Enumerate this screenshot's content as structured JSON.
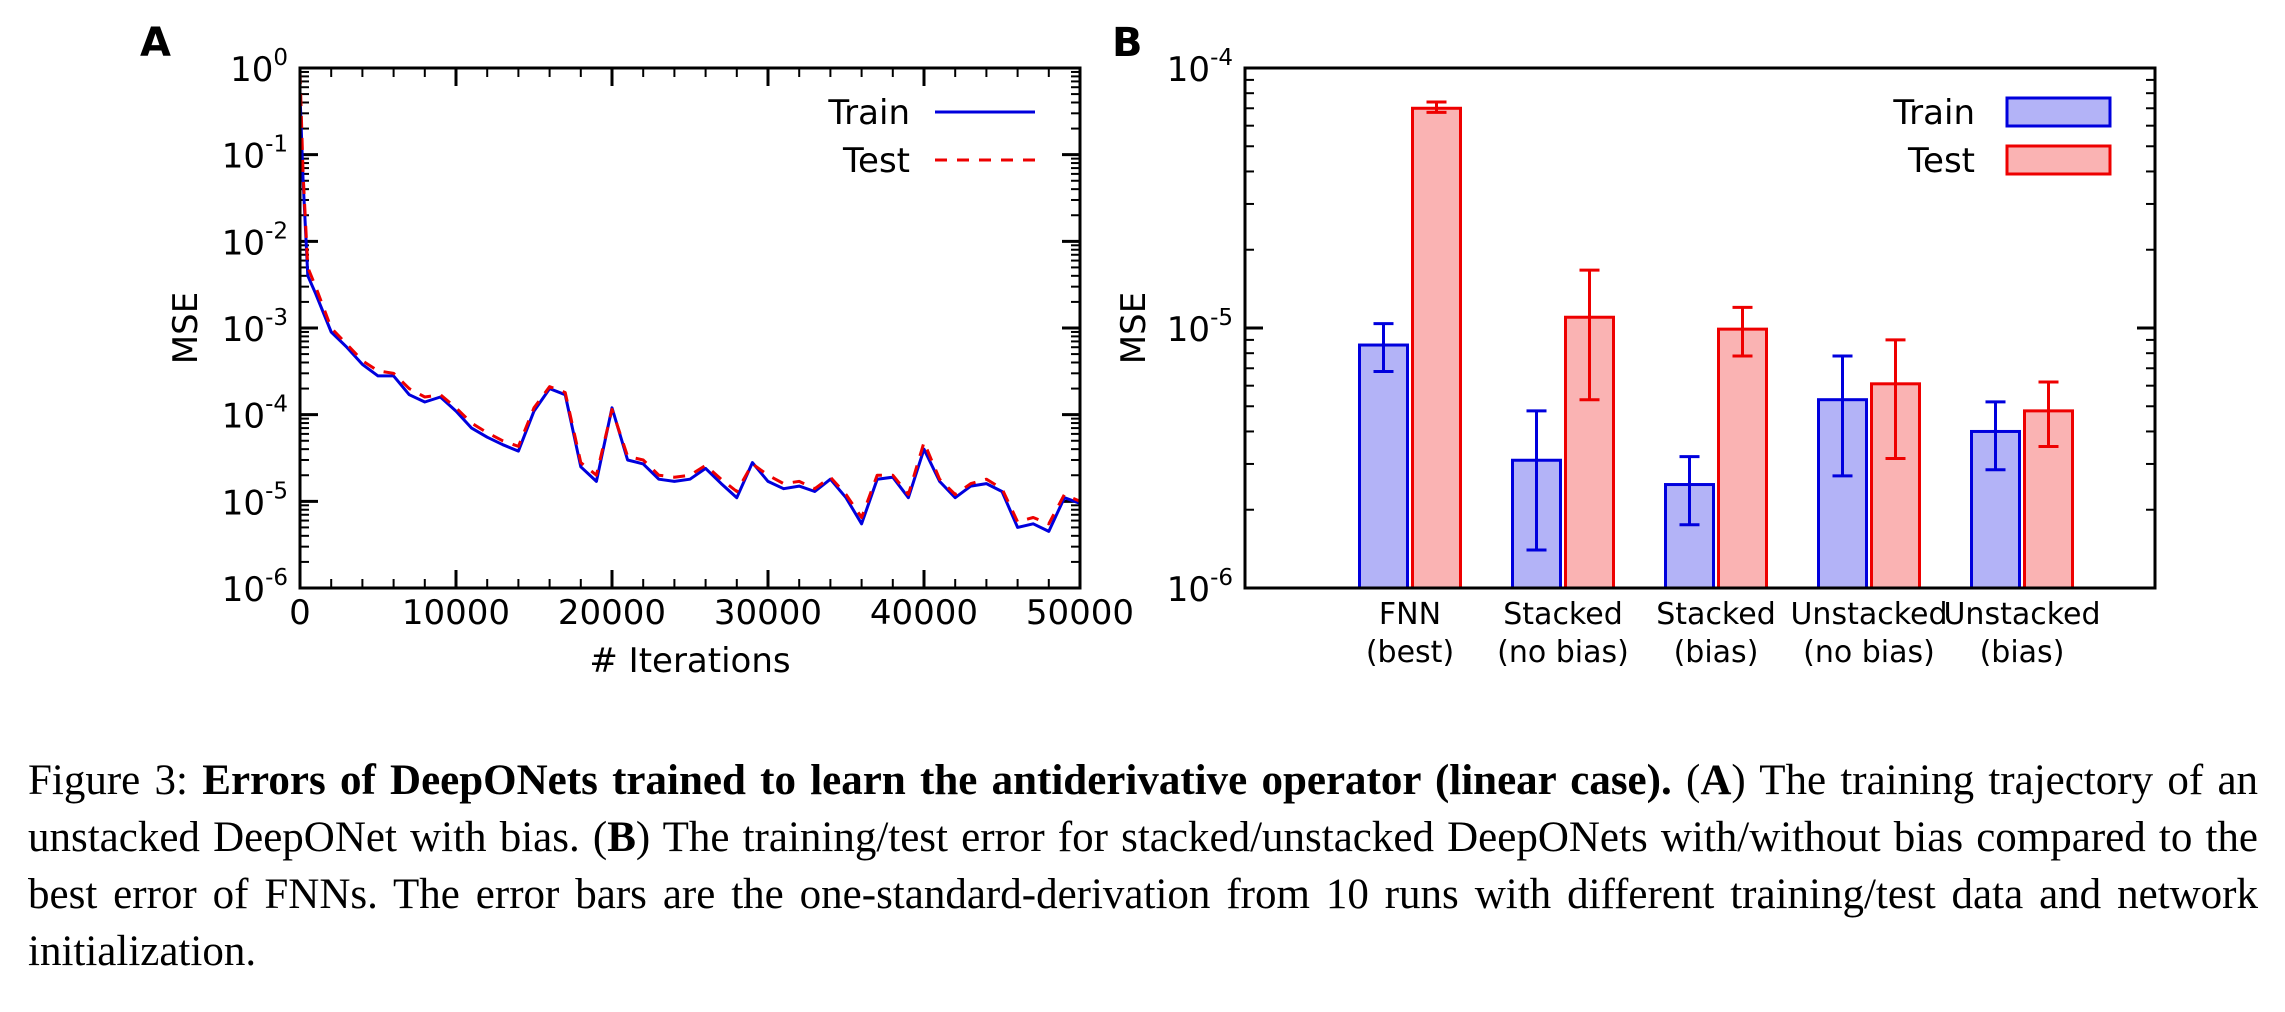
{
  "chart_data": [
    {
      "type": "line",
      "panel_label": "A",
      "xlabel": "# Iterations",
      "ylabel": "MSE",
      "yscale": "log",
      "xlim": [
        0,
        50000
      ],
      "ylim": [
        1e-06,
        1
      ],
      "x_ticks": [
        "0",
        "10000",
        "20000",
        "30000",
        "40000",
        "50000"
      ],
      "y_tick_bases": [
        "10",
        "10",
        "10",
        "10",
        "10",
        "10",
        "10"
      ],
      "y_tick_exponents": [
        "0",
        "-1",
        "-2",
        "-3",
        "-4",
        "-5",
        "-6"
      ],
      "legend": [
        "Train",
        "Test"
      ],
      "legend_position": "top-right",
      "series": [
        {
          "name": "Train",
          "color": "#0000dd",
          "style": "solid",
          "x": [
            0,
            200,
            500,
            1000,
            2000,
            3000,
            4000,
            5000,
            6000,
            7000,
            8000,
            9000,
            10000,
            11000,
            12000,
            13000,
            14000,
            15000,
            16000,
            17000,
            18000,
            19000,
            20000,
            21000,
            22000,
            23000,
            24000,
            25000,
            26000,
            27000,
            28000,
            29000,
            30000,
            31000,
            32000,
            33000,
            34000,
            35000,
            36000,
            37000,
            38000,
            39000,
            40000,
            41000,
            42000,
            43000,
            44000,
            45000,
            46000,
            47000,
            48000,
            49000,
            50000
          ],
          "values": [
            0.5,
            0.05,
            0.004,
            0.0025,
            0.0009,
            0.0006,
            0.00038,
            0.00028,
            0.00028,
            0.00017,
            0.00014,
            0.00016,
            0.00011,
            7e-05,
            5.5e-05,
            4.5e-05,
            3.8e-05,
            0.00011,
            0.0002,
            0.00017,
            2.5e-05,
            1.7e-05,
            0.00012,
            3e-05,
            2.7e-05,
            1.8e-05,
            1.7e-05,
            1.8e-05,
            2.4e-05,
            1.6e-05,
            1.1e-05,
            2.8e-05,
            1.7e-05,
            1.4e-05,
            1.5e-05,
            1.3e-05,
            1.8e-05,
            1.1e-05,
            5.5e-06,
            1.8e-05,
            1.9e-05,
            1.1e-05,
            4e-05,
            1.7e-05,
            1.1e-05,
            1.5e-05,
            1.6e-05,
            1.3e-05,
            5e-06,
            5.5e-06,
            4.5e-06,
            1.1e-05,
            9.5e-06
          ]
        },
        {
          "name": "Test",
          "color": "#ee0000",
          "style": "dashed",
          "x": [
            0,
            200,
            500,
            1000,
            2000,
            3000,
            4000,
            5000,
            6000,
            7000,
            8000,
            9000,
            10000,
            11000,
            12000,
            13000,
            14000,
            15000,
            16000,
            17000,
            18000,
            19000,
            20000,
            21000,
            22000,
            23000,
            24000,
            25000,
            26000,
            27000,
            28000,
            29000,
            30000,
            31000,
            32000,
            33000,
            34000,
            35000,
            36000,
            37000,
            38000,
            39000,
            40000,
            41000,
            42000,
            43000,
            44000,
            45000,
            46000,
            47000,
            48000,
            49000,
            50000
          ],
          "values": [
            0.9,
            0.06,
            0.005,
            0.003,
            0.001,
            0.00065,
            0.00042,
            0.00032,
            0.0003,
            0.0002,
            0.00016,
            0.00017,
            0.00012,
            8e-05,
            6.2e-05,
            5e-05,
            4.3e-05,
            0.00012,
            0.00021,
            0.00018,
            2.8e-05,
            2e-05,
            0.000115,
            3.3e-05,
            3e-05,
            2e-05,
            1.9e-05,
            2e-05,
            2.6e-05,
            1.8e-05,
            1.3e-05,
            2.7e-05,
            2e-05,
            1.6e-05,
            1.7e-05,
            1.4e-05,
            1.9e-05,
            1.2e-05,
            6.5e-06,
            2e-05,
            2e-05,
            1.2e-05,
            4.8e-05,
            1.8e-05,
            1.2e-05,
            1.6e-05,
            1.8e-05,
            1.4e-05,
            5.8e-06,
            6.5e-06,
            5.5e-06,
            1.2e-05,
            1e-05
          ]
        }
      ]
    },
    {
      "type": "bar",
      "panel_label": "B",
      "ylabel": "MSE",
      "yscale": "log",
      "ylim": [
        1e-06,
        0.0001
      ],
      "y_tick_bases": [
        "10",
        "10",
        "10"
      ],
      "y_tick_exponents": [
        "-4",
        "-5",
        "-6"
      ],
      "categories": [
        "FNN\n(best)",
        "Stacked\n(no bias)",
        "Stacked\n(bias)",
        "Unstacked\n(no bias)",
        "Unstacked\n(bias)"
      ],
      "category_lines": [
        [
          "FNN",
          "(best)"
        ],
        [
          "Stacked",
          "(no bias)"
        ],
        [
          "Stacked",
          "(bias)"
        ],
        [
          "Unstacked",
          "(no bias)"
        ],
        [
          "Unstacked",
          "(bias)"
        ]
      ],
      "legend": [
        "Train",
        "Test"
      ],
      "legend_position": "top-right",
      "series": [
        {
          "name": "Train",
          "fill": "#b3b3f7",
          "edge": "#0000dd",
          "values": [
            8.6e-06,
            3.1e-06,
            2.5e-06,
            5.3e-06,
            4e-06
          ],
          "err_low": [
            6.8e-06,
            1.4e-06,
            1.75e-06,
            2.7e-06,
            2.85e-06
          ],
          "err_high": [
            1.04e-05,
            4.8e-06,
            3.2e-06,
            7.8e-06,
            5.2e-06
          ]
        },
        {
          "name": "Test",
          "fill": "#fab3b3",
          "edge": "#ee0000",
          "values": [
            7e-05,
            1.1e-05,
            9.9e-06,
            6.1e-06,
            4.8e-06
          ],
          "err_low": [
            6.75e-05,
            5.3e-06,
            7.8e-06,
            3.15e-06,
            3.5e-06
          ],
          "err_high": [
            7.4e-05,
            1.67e-05,
            1.2e-05,
            9e-06,
            6.2e-06
          ]
        }
      ]
    }
  ],
  "caption": {
    "figure_label": "Figure 3:",
    "title": "Errors of DeepONets trained to learn the antiderivative operator (linear case).",
    "open_paren_a": "(",
    "label_a": "A",
    "text_a": ") The training trajectory of an unstacked DeepONet with bias.",
    "open_paren_b": "(",
    "label_b": "B",
    "text_b": ") The training/test error for stacked/unstacked DeepONets with/without bias compared to the best error of FNNs. The error bars are the one-standard-derivation from 10 runs with different training/test data and network initialization."
  }
}
